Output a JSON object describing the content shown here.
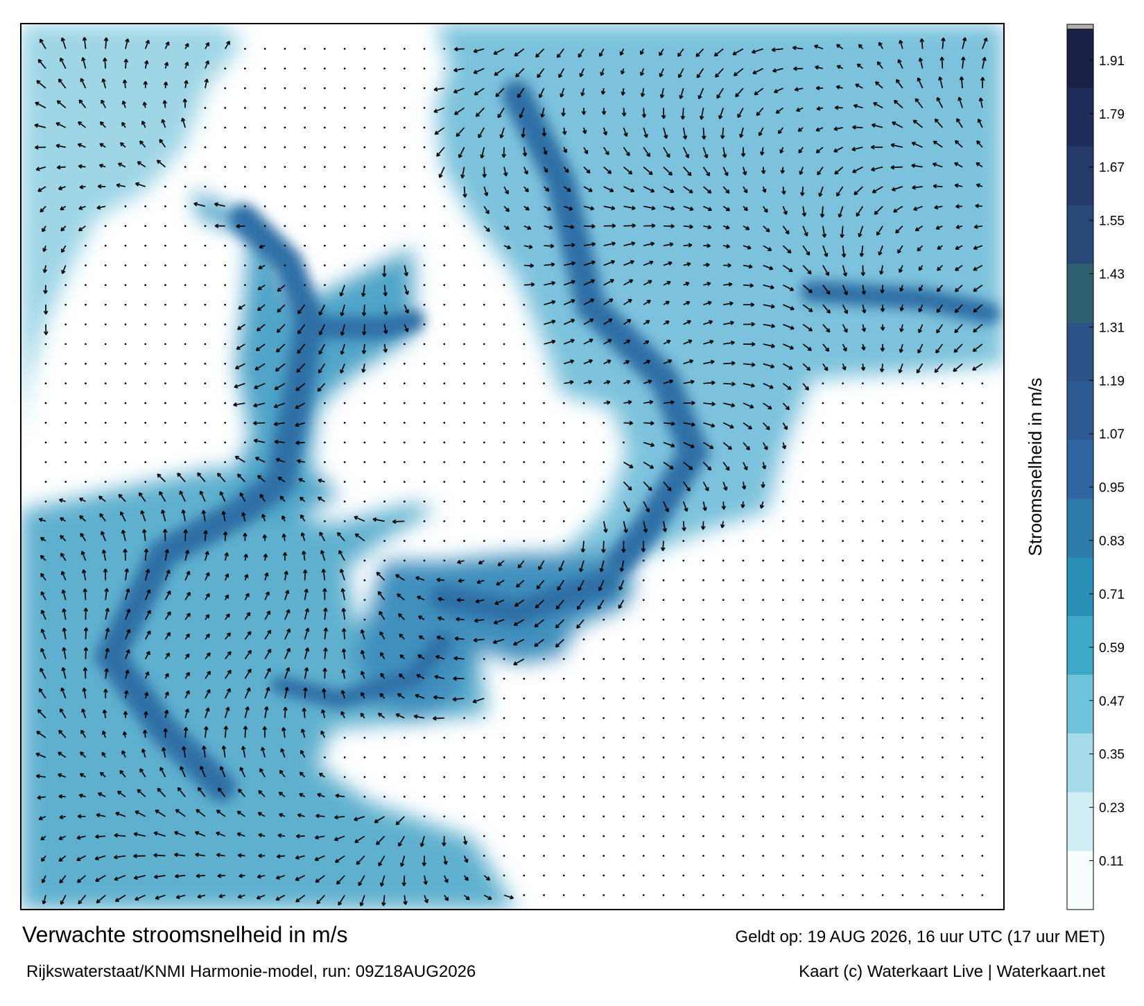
{
  "title": "Verwachte stroomsnelheid in m/s",
  "subtitle": "Rijkswaterstaat/KNMI Harmonie-model, run: 09Z18AUG2026",
  "valid": "Geldt op: 19 AUG 2026, 16 uur UTC (17 uur MET)",
  "credit": "Kaart (c) Waterkaart Live | Waterkaart.net",
  "colorbar": {
    "label": "Stroomsnelheid in m/s",
    "lim": [
      0,
      1.98
    ],
    "ticks": [
      0.11,
      0.23,
      0.35,
      0.47,
      0.59,
      0.71,
      0.83,
      0.95,
      1.07,
      1.19,
      1.31,
      1.43,
      1.55,
      1.67,
      1.79,
      1.91
    ],
    "colors": [
      "#f7fcfd",
      "#d2eef5",
      "#a6dcea",
      "#6fc4db",
      "#3ea8c8",
      "#2a8fb6",
      "#2d7aa9",
      "#2f66a1",
      "#2e5a94",
      "#2c5387",
      "#2f6070",
      "#284978",
      "#233a6b",
      "#1e2d5a",
      "#1a2147"
    ]
  }
}
